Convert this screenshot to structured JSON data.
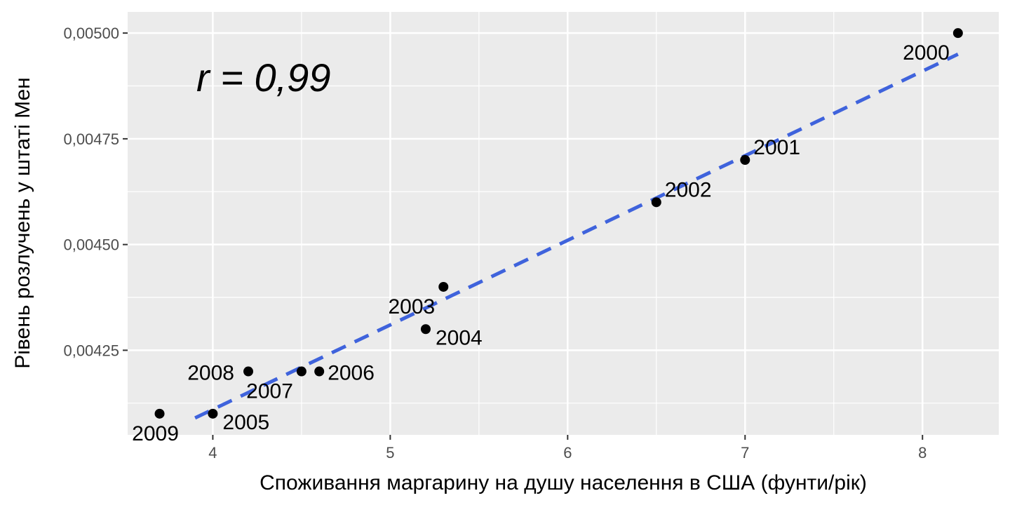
{
  "chart_data": {
    "type": "scatter",
    "xlabel": "Споживання маргарину на душу населення в США (фунти/рік)",
    "ylabel": "Рівень розлучень у штаті Мен",
    "xlim": [
      3.52,
      8.43
    ],
    "ylim": [
      4.05,
      5.05
    ],
    "x_ticks": [
      {
        "value": 4,
        "label": "4"
      },
      {
        "value": 5,
        "label": "5"
      },
      {
        "value": 6,
        "label": "6"
      },
      {
        "value": 7,
        "label": "7"
      },
      {
        "value": 8,
        "label": "8"
      }
    ],
    "y_ticks": [
      {
        "value": 4.25,
        "label": "0,00425"
      },
      {
        "value": 4.5,
        "label": "0,00450"
      },
      {
        "value": 4.75,
        "label": "0,00475"
      },
      {
        "value": 5.0,
        "label": "0,00500"
      }
    ],
    "y_unit_note": "y values expressed in thousandths (tick labels show the printed values)",
    "points": [
      {
        "year": "2000",
        "x": 8.2,
        "y": 5.0,
        "label_pos": "left-below"
      },
      {
        "year": "2001",
        "x": 7.0,
        "y": 4.7,
        "label_pos": "right-above"
      },
      {
        "year": "2002",
        "x": 6.5,
        "y": 4.6,
        "label_pos": "right-above"
      },
      {
        "year": "2003",
        "x": 5.3,
        "y": 4.4,
        "label_pos": "left-below"
      },
      {
        "year": "2004",
        "x": 5.2,
        "y": 4.3,
        "label_pos": "right-below"
      },
      {
        "year": "2005",
        "x": 4.0,
        "y": 4.1,
        "label_pos": "right-below"
      },
      {
        "year": "2006",
        "x": 4.6,
        "y": 4.2,
        "label_pos": "right"
      },
      {
        "year": "2007",
        "x": 4.5,
        "y": 4.2,
        "label_pos": "left-below"
      },
      {
        "year": "2008",
        "x": 4.2,
        "y": 4.2,
        "label_pos": "left"
      },
      {
        "year": "2009",
        "x": 3.7,
        "y": 4.1,
        "label_pos": "below"
      }
    ],
    "trendline": {
      "style": "dashed",
      "color": "#3f63dc",
      "x": [
        3.9,
        8.2
      ],
      "y": [
        4.09,
        4.95
      ]
    },
    "annotation": "r = 0,99",
    "grid": true,
    "colors": {
      "panel": "#ebebeb",
      "grid": "#ffffff",
      "points": "#000000"
    }
  }
}
